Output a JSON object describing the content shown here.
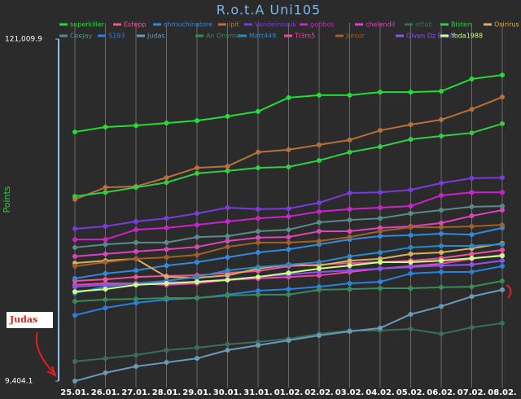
{
  "chart_data": {
    "type": "line",
    "title": "R.o.t.A Uni105",
    "y_label": "Points",
    "annotation": "Judas",
    "categories": [
      "25.01.",
      "26.01.",
      "27.01.",
      "28.01.",
      "29.01.",
      "30.01.",
      "31.01.",
      "01.02.",
      "02.02.",
      "03.02.",
      "04.02.",
      "05.02.",
      "06.02.",
      "07.02.",
      "08.02."
    ],
    "ylim": [
      9404.1,
      121009.9
    ],
    "yticks": [
      {
        "value": 121009.9,
        "label": "121,009.9"
      },
      {
        "value": 9404.1,
        "label": "9,404.1"
      }
    ],
    "grid": true,
    "series": [
      {
        "name": "superkiller",
        "color": "#22dd33",
        "values": [
          90700,
          92300,
          92800,
          93600,
          94400,
          95800,
          97400,
          101900,
          102700,
          102700,
          103700,
          103700,
          104000,
          108000,
          109300
        ]
      },
      {
        "name": "Estepp",
        "color": "#ee5599",
        "values": [
          42100,
          42600,
          43400,
          43700,
          43900,
          44700,
          45300,
          46900,
          47400,
          47900,
          48200,
          48700,
          49500,
          50900,
          52200
        ]
      },
      {
        "name": "chmuchinatore",
        "color": "#3388dd",
        "values": [
          42900,
          44500,
          45500,
          47100,
          48200,
          49800,
          51400,
          52400,
          54000,
          55600,
          56700,
          57000,
          57500,
          57200,
          59400
        ]
      },
      {
        "name": "ipit",
        "color": "#b8703a",
        "values": [
          68700,
          72600,
          72900,
          75800,
          79000,
          79500,
          84100,
          84900,
          86500,
          88100,
          91200,
          93100,
          94700,
          98100,
          102100
        ]
      },
      {
        "name": "Vendeinsouk",
        "color": "#7a3adf",
        "values": [
          59100,
          59900,
          61500,
          62500,
          64100,
          66000,
          65500,
          65700,
          67600,
          70800,
          71000,
          71800,
          74000,
          75600,
          75800
        ]
      },
      {
        "name": "gotibos",
        "color": "#cc22cc",
        "values": [
          55600,
          55600,
          58800,
          59400,
          60400,
          61500,
          62500,
          63100,
          64700,
          65500,
          66000,
          66500,
          70000,
          71000,
          71000
        ]
      },
      {
        "name": "chelendil",
        "color": "#dd44bb",
        "values": [
          50100,
          50900,
          51700,
          52400,
          53200,
          55100,
          56200,
          56400,
          58300,
          58300,
          59400,
          59900,
          61000,
          63300,
          65200
        ]
      },
      {
        "name": "ettab",
        "color": "#3a6e5a",
        "values": [
          15800,
          16800,
          17900,
          19500,
          20300,
          21400,
          22200,
          23200,
          24800,
          25900,
          25900,
          26400,
          24800,
          26900,
          28300
        ]
      },
      {
        "name": "Bisten",
        "color": "#33cc44",
        "values": [
          69700,
          71000,
          72600,
          74200,
          77200,
          78000,
          79000,
          79300,
          81400,
          84100,
          85900,
          88300,
          89400,
          90400,
          93400
        ]
      },
      {
        "name": "Osirirus",
        "color": "#d9b060",
        "values": [
          47900,
          48700,
          49300,
          43400,
          43100,
          43900,
          46100,
          47400,
          47100,
          48700,
          49300,
          50900,
          51400,
          52700,
          54300
        ]
      },
      {
        "name": "Ceejay",
        "color": "#5a8a8a",
        "values": [
          53000,
          54000,
          54600,
          54600,
          56400,
          56700,
          58300,
          58800,
          61200,
          62000,
          62500,
          64100,
          65200,
          66300,
          66500
        ]
      },
      {
        "name": "S193",
        "color": "#2a80dd",
        "values": [
          30900,
          33300,
          34900,
          36000,
          36500,
          37600,
          38900,
          39400,
          40200,
          41300,
          41800,
          44500,
          45000,
          45000,
          46900
        ]
      },
      {
        "name": "Judas",
        "color": "#6a9ab8",
        "values": [
          9404.1,
          12100,
          14200,
          15500,
          16800,
          19500,
          21100,
          22700,
          24300,
          25600,
          26700,
          31200,
          33800,
          37000,
          39200
        ]
      },
      {
        "name": "An Onyme",
        "color": "#3a8a5a",
        "values": [
          35400,
          36000,
          36200,
          36500,
          36500,
          37300,
          37600,
          37600,
          39200,
          39400,
          39700,
          39700,
          40000,
          40200,
          42100
        ]
      },
      {
        "name": "Matt448",
        "color": "#2a88cc",
        "values": [
          38100,
          40200,
          41300,
          42100,
          43400,
          45500,
          46600,
          47400,
          48200,
          50100,
          51400,
          53000,
          53500,
          53500,
          54000
        ]
      },
      {
        "name": "TI3m5",
        "color": "#ee44aa",
        "values": [
          40800,
          41300,
          41300,
          40800,
          41300,
          42400,
          42900,
          43400,
          43900,
          45000,
          46100,
          46900,
          47700,
          49300,
          50600
        ]
      },
      {
        "name": "Junior",
        "color": "#a0602a",
        "values": [
          46900,
          48200,
          49300,
          49800,
          50600,
          53200,
          54600,
          54600,
          55100,
          56400,
          58300,
          59600,
          59600,
          59900,
          60400
        ]
      },
      {
        "name": "Given Dz Brasil",
        "color": "#8855ee",
        "values": [
          40200,
          40800,
          41000,
          41600,
          41800,
          42600,
          43400,
          44200,
          45000,
          45500,
          46100,
          46600,
          47100,
          47400,
          48700
        ]
      },
      {
        "name": "Yoda1988",
        "color": "#ccff88",
        "values": [
          38600,
          39400,
          40800,
          41300,
          41800,
          42400,
          43400,
          44700,
          46100,
          47100,
          48200,
          48200,
          48700,
          49500,
          50300
        ]
      }
    ]
  }
}
